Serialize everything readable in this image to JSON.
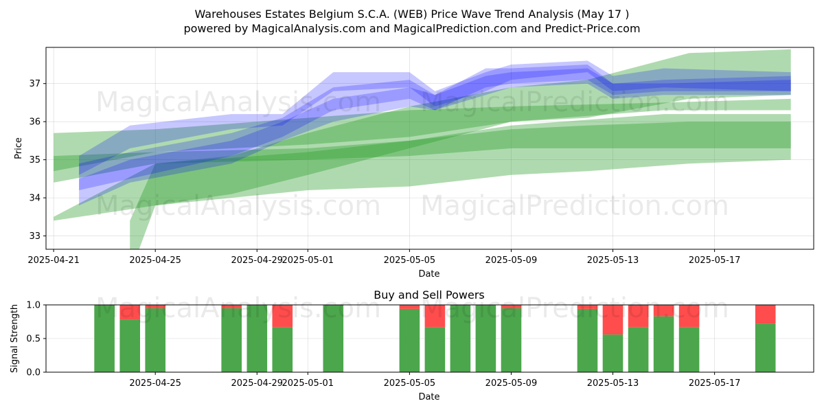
{
  "title_line1": "Warehouses Estates Belgium S.C.A. (WEB) Price Wave Trend Analysis (May 17 )",
  "title_line2": "powered by MagicalAnalysis.com and MagicalPrediction.com and Predict-Price.com",
  "watermarks": [
    "MagicalAnalysis.com",
    "MagicalPrediction.com"
  ],
  "colors": {
    "blue": "#0000ff",
    "green": "#2e9e2e",
    "buy": "#4ca64c",
    "sell": "#ff4d4d"
  },
  "chart_data": [
    {
      "type": "area",
      "xlabel": "Date",
      "ylabel": "Price",
      "ylim": [
        32.65,
        37.95
      ],
      "x_range": [
        "2025-04-20.7",
        "2025-05-20.9"
      ],
      "x_ticks": [
        "2025-04-21",
        "2025-04-25",
        "2025-04-29",
        "2025-05-01",
        "2025-05-05",
        "2025-05-09",
        "2025-05-13",
        "2025-05-17"
      ],
      "y_ticks": [
        33,
        34,
        35,
        36,
        37
      ],
      "grid": true,
      "series": [
        {
          "color": "blue",
          "band": [
            {
              "x": "2025-04-22",
              "lo": 34.6,
              "hi": 35.1
            },
            {
              "x": "2025-04-24",
              "lo": 35.3,
              "hi": 35.9
            },
            {
              "x": "2025-04-28",
              "lo": 35.8,
              "hi": 36.2
            },
            {
              "x": "2025-04-30",
              "lo": 35.9,
              "hi": 36.2
            },
            {
              "x": "2025-05-02",
              "lo": 36.8,
              "hi": 37.3
            },
            {
              "x": "2025-05-05",
              "lo": 36.9,
              "hi": 37.3
            },
            {
              "x": "2025-05-06",
              "lo": 36.4,
              "hi": 36.8
            },
            {
              "x": "2025-05-08",
              "lo": 36.8,
              "hi": 37.3
            },
            {
              "x": "2025-05-09",
              "lo": 37.1,
              "hi": 37.5
            },
            {
              "x": "2025-05-12",
              "lo": 37.3,
              "hi": 37.6
            },
            {
              "x": "2025-05-13",
              "lo": 36.8,
              "hi": 37.2
            },
            {
              "x": "2025-05-15",
              "lo": 36.9,
              "hi": 37.4
            },
            {
              "x": "2025-05-20",
              "lo": 36.8,
              "hi": 37.3
            }
          ]
        },
        {
          "color": "blue",
          "band": [
            {
              "x": "2025-04-22",
              "lo": 34.2,
              "hi": 34.9
            },
            {
              "x": "2025-04-24",
              "lo": 34.5,
              "hi": 35.2
            },
            {
              "x": "2025-04-28",
              "lo": 35.1,
              "hi": 35.7
            },
            {
              "x": "2025-04-30",
              "lo": 35.6,
              "hi": 36.1
            },
            {
              "x": "2025-05-02",
              "lo": 36.3,
              "hi": 36.9
            },
            {
              "x": "2025-05-05",
              "lo": 36.6,
              "hi": 37.1
            },
            {
              "x": "2025-05-06",
              "lo": 36.3,
              "hi": 36.7
            },
            {
              "x": "2025-05-08",
              "lo": 36.9,
              "hi": 37.4
            },
            {
              "x": "2025-05-09",
              "lo": 37.0,
              "hi": 37.4
            },
            {
              "x": "2025-05-12",
              "lo": 37.1,
              "hi": 37.5
            },
            {
              "x": "2025-05-13",
              "lo": 36.7,
              "hi": 37.0
            },
            {
              "x": "2025-05-15",
              "lo": 36.8,
              "hi": 37.1
            },
            {
              "x": "2025-05-20",
              "lo": 36.8,
              "hi": 37.2
            }
          ]
        },
        {
          "color": "blue",
          "band": [
            {
              "x": "2025-04-22",
              "lo": 33.8,
              "hi": 34.5
            },
            {
              "x": "2025-04-24",
              "lo": 34.4,
              "hi": 35.0
            },
            {
              "x": "2025-04-28",
              "lo": 34.9,
              "hi": 35.5
            },
            {
              "x": "2025-04-30",
              "lo": 35.5,
              "hi": 36.0
            },
            {
              "x": "2025-05-02",
              "lo": 36.0,
              "hi": 36.6
            },
            {
              "x": "2025-05-05",
              "lo": 36.4,
              "hi": 36.9
            },
            {
              "x": "2025-05-06",
              "lo": 36.3,
              "hi": 36.7
            },
            {
              "x": "2025-05-08",
              "lo": 36.7,
              "hi": 37.2
            },
            {
              "x": "2025-05-09",
              "lo": 36.9,
              "hi": 37.3
            },
            {
              "x": "2025-05-12",
              "lo": 37.0,
              "hi": 37.4
            },
            {
              "x": "2025-05-13",
              "lo": 36.6,
              "hi": 37.0
            },
            {
              "x": "2025-05-15",
              "lo": 36.7,
              "hi": 37.0
            },
            {
              "x": "2025-05-20",
              "lo": 36.7,
              "hi": 37.1
            }
          ]
        },
        {
          "color": "green",
          "band": [
            {
              "x": "2025-04-21",
              "lo": 34.7,
              "hi": 35.7
            },
            {
              "x": "2025-04-25",
              "lo": 35.2,
              "hi": 35.8
            },
            {
              "x": "2025-05-01",
              "lo": 35.4,
              "hi": 36.1
            },
            {
              "x": "2025-05-05",
              "lo": 35.6,
              "hi": 36.3
            },
            {
              "x": "2025-05-09",
              "lo": 36.0,
              "hi": 36.4
            },
            {
              "x": "2025-05-15",
              "lo": 36.3,
              "hi": 36.5
            },
            {
              "x": "2025-05-20",
              "lo": 36.3,
              "hi": 36.6
            }
          ]
        },
        {
          "color": "green",
          "band": [
            {
              "x": "2025-04-21",
              "lo": 34.4,
              "hi": 35.1
            },
            {
              "x": "2025-04-25",
              "lo": 34.9,
              "hi": 35.2
            },
            {
              "x": "2025-05-01",
              "lo": 35.0,
              "hi": 35.3
            },
            {
              "x": "2025-05-05",
              "lo": 35.1,
              "hi": 35.5
            },
            {
              "x": "2025-05-09",
              "lo": 35.3,
              "hi": 35.9
            },
            {
              "x": "2025-05-15",
              "lo": 35.3,
              "hi": 36.2
            },
            {
              "x": "2025-05-20",
              "lo": 35.3,
              "hi": 36.2
            }
          ]
        },
        {
          "color": "green",
          "band": [
            {
              "x": "2025-04-21",
              "lo": 33.4,
              "hi": 33.5
            },
            {
              "x": "2025-04-25",
              "lo": 33.8,
              "hi": 34.9
            },
            {
              "x": "2025-04-28",
              "lo": 34.1,
              "hi": 35.1
            },
            {
              "x": "2025-05-01",
              "lo": 34.6,
              "hi": 35.7
            },
            {
              "x": "2025-05-05",
              "lo": 35.3,
              "hi": 36.4
            },
            {
              "x": "2025-05-09",
              "lo": 36.0,
              "hi": 36.9
            },
            {
              "x": "2025-05-12",
              "lo": 36.1,
              "hi": 37.1
            },
            {
              "x": "2025-05-16",
              "lo": 36.6,
              "hi": 37.8
            },
            {
              "x": "2025-05-20",
              "lo": 36.7,
              "hi": 37.9
            }
          ]
        },
        {
          "color": "green",
          "band": [
            {
              "x": "2025-04-24",
              "lo": 32.0,
              "hi": 33.4
            },
            {
              "x": "2025-04-25",
              "lo": 33.8,
              "hi": 34.9
            },
            {
              "x": "2025-05-01",
              "lo": 34.2,
              "hi": 35.2
            },
            {
              "x": "2025-05-05",
              "lo": 34.3,
              "hi": 35.5
            },
            {
              "x": "2025-05-09",
              "lo": 34.6,
              "hi": 35.8
            },
            {
              "x": "2025-05-12",
              "lo": 34.7,
              "hi": 35.9
            },
            {
              "x": "2025-05-16",
              "lo": 34.9,
              "hi": 36.0
            },
            {
              "x": "2025-05-20",
              "lo": 35.0,
              "hi": 36.0
            }
          ]
        }
      ]
    },
    {
      "type": "bar",
      "title": "Buy and Sell Powers",
      "xlabel": "Date",
      "ylabel": "Signal Strength",
      "ylim": [
        0,
        1
      ],
      "y_ticks": [
        "0.0",
        "0.5",
        "1.0"
      ],
      "x_ticks": [
        "2025-04-25",
        "2025-04-29",
        "2025-05-01",
        "2025-05-05",
        "2025-05-09",
        "2025-05-13",
        "2025-05-17"
      ],
      "grid": true,
      "series": [
        {
          "name": "buy",
          "values": [
            {
              "x": "2025-04-23",
              "v": 1.0
            },
            {
              "x": "2025-04-24",
              "v": 0.78
            },
            {
              "x": "2025-04-25",
              "v": 0.95
            },
            {
              "x": "2025-04-28",
              "v": 0.95
            },
            {
              "x": "2025-04-29",
              "v": 1.0
            },
            {
              "x": "2025-04-30",
              "v": 0.67
            },
            {
              "x": "2025-05-02",
              "v": 1.0
            },
            {
              "x": "2025-05-05",
              "v": 0.94
            },
            {
              "x": "2025-05-06",
              "v": 0.67
            },
            {
              "x": "2025-05-07",
              "v": 1.0
            },
            {
              "x": "2025-05-08",
              "v": 1.0
            },
            {
              "x": "2025-05-09",
              "v": 0.95
            },
            {
              "x": "2025-05-12",
              "v": 0.94
            },
            {
              "x": "2025-05-13",
              "v": 0.56
            },
            {
              "x": "2025-05-14",
              "v": 0.67
            },
            {
              "x": "2025-05-15",
              "v": 0.83
            },
            {
              "x": "2025-05-16",
              "v": 0.67
            },
            {
              "x": "2025-05-19",
              "v": 0.72
            }
          ]
        },
        {
          "name": "sell",
          "values": [
            {
              "x": "2025-04-23",
              "v": 0.0
            },
            {
              "x": "2025-04-24",
              "v": 0.22
            },
            {
              "x": "2025-04-25",
              "v": 0.05
            },
            {
              "x": "2025-04-28",
              "v": 0.05
            },
            {
              "x": "2025-04-29",
              "v": 0.0
            },
            {
              "x": "2025-04-30",
              "v": 0.33
            },
            {
              "x": "2025-05-02",
              "v": 0.0
            },
            {
              "x": "2025-05-05",
              "v": 0.06
            },
            {
              "x": "2025-05-06",
              "v": 0.33
            },
            {
              "x": "2025-05-07",
              "v": 0.0
            },
            {
              "x": "2025-05-08",
              "v": 0.0
            },
            {
              "x": "2025-05-09",
              "v": 0.05
            },
            {
              "x": "2025-05-12",
              "v": 0.06
            },
            {
              "x": "2025-05-13",
              "v": 0.44
            },
            {
              "x": "2025-05-14",
              "v": 0.33
            },
            {
              "x": "2025-05-15",
              "v": 0.17
            },
            {
              "x": "2025-05-16",
              "v": 0.33
            },
            {
              "x": "2025-05-19",
              "v": 0.28
            }
          ]
        }
      ]
    }
  ]
}
